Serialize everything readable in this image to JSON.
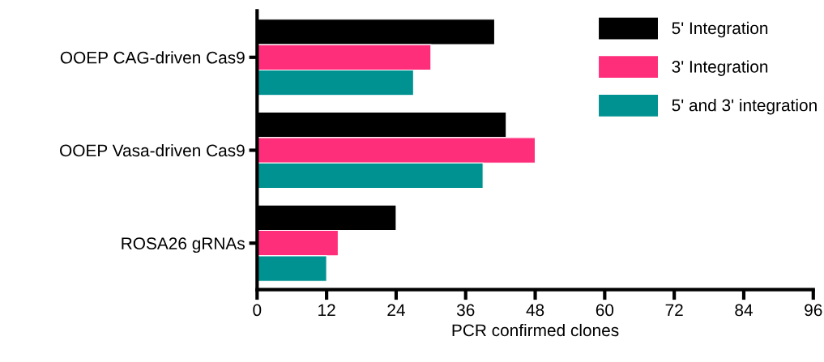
{
  "chart_data": {
    "type": "bar",
    "orientation": "horizontal",
    "categories": [
      "OOEP CAG-driven Cas9",
      "OOEP Vasa-driven Cas9",
      "ROSA26 gRNAs"
    ],
    "series": [
      {
        "name": "5' Integration",
        "color": "#000000",
        "values": [
          41,
          43,
          24
        ]
      },
      {
        "name": "3' Integration",
        "color": "#ff2e7a",
        "values": [
          30,
          48,
          14
        ]
      },
      {
        "name": "5' and 3' integration",
        "color": "#009191",
        "values": [
          27,
          39,
          12
        ]
      }
    ],
    "xlabel": "PCR confirmed clones",
    "xlim": [
      0,
      96
    ],
    "xticks": [
      0,
      12,
      24,
      36,
      48,
      60,
      72,
      84,
      96
    ],
    "grid": false,
    "legend": "top right"
  }
}
